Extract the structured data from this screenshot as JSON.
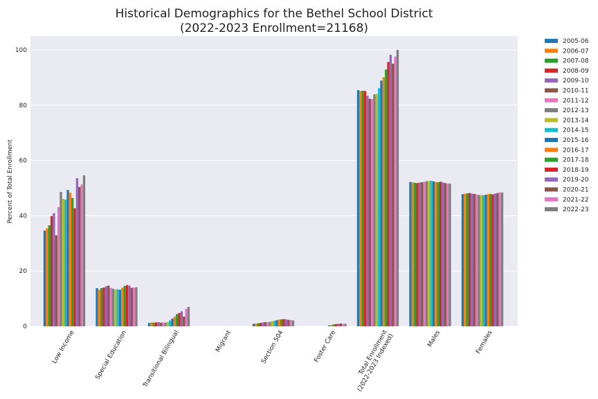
{
  "chart_data": {
    "type": "bar",
    "title": "Historical Demographics for the Bethel School District",
    "subtitle": "(2022-2023 Enrollment=21168)",
    "xlabel": "",
    "ylabel": "Percent of Total Enrollment",
    "ylim": [
      0,
      105
    ],
    "yticks": [
      0,
      20,
      40,
      60,
      80,
      100
    ],
    "grid": true,
    "legend_position": "outside-right",
    "categories": [
      "Low Income",
      "Special Education",
      "Transitional Bilingual",
      "Migrant",
      "Section 504",
      "Foster Care",
      "Total Enrollment\n(2022-2023 Indexed)",
      "Males",
      "Females"
    ],
    "series": [
      {
        "name": "2005-06",
        "color": "#1f77b4",
        "values": [
          34.6,
          13.8,
          1.2,
          0.0,
          0.9,
          0.0,
          85.4,
          52.2,
          47.8
        ]
      },
      {
        "name": "2006-07",
        "color": "#ff7f0e",
        "values": [
          35.4,
          13.2,
          1.4,
          0.0,
          1.0,
          0.0,
          85.1,
          52.0,
          48.0
        ]
      },
      {
        "name": "2007-08",
        "color": "#2ca02c",
        "values": [
          36.5,
          13.8,
          1.3,
          0.0,
          1.1,
          0.0,
          85.2,
          51.9,
          48.1
        ]
      },
      {
        "name": "2008-09",
        "color": "#d62728",
        "values": [
          39.9,
          14.0,
          1.4,
          0.0,
          1.2,
          0.0,
          85.1,
          51.8,
          48.2
        ]
      },
      {
        "name": "2009-10",
        "color": "#9467bd",
        "values": [
          40.9,
          14.5,
          1.5,
          0.0,
          1.4,
          0.0,
          83.4,
          52.0,
          48.0
        ]
      },
      {
        "name": "2010-11",
        "color": "#8c564b",
        "values": [
          32.9,
          14.7,
          1.3,
          0.0,
          1.5,
          0.0,
          82.3,
          52.1,
          47.9
        ]
      },
      {
        "name": "2011-12",
        "color": "#e377c2",
        "values": [
          43.1,
          13.9,
          1.4,
          0.0,
          1.5,
          0.0,
          82.2,
          52.3,
          47.7
        ]
      },
      {
        "name": "2012-13",
        "color": "#7f7f7f",
        "values": [
          48.6,
          13.6,
          1.3,
          0.0,
          1.6,
          0.0,
          83.9,
          52.5,
          47.5
        ]
      },
      {
        "name": "2013-14",
        "color": "#bcbd22",
        "values": [
          46.1,
          13.3,
          1.5,
          0.0,
          1.8,
          0.0,
          84.1,
          52.5,
          47.5
        ]
      },
      {
        "name": "2014-15",
        "color": "#17becf",
        "values": [
          45.8,
          13.4,
          2.1,
          0.0,
          2.0,
          0.0,
          86.1,
          52.6,
          47.4
        ]
      },
      {
        "name": "2015-16",
        "color": "#1f77b4",
        "values": [
          49.3,
          13.2,
          2.8,
          0.0,
          2.2,
          0.3,
          88.9,
          52.4,
          47.6
        ]
      },
      {
        "name": "2016-17",
        "color": "#ff7f0e",
        "values": [
          48.3,
          14.0,
          3.5,
          0.0,
          2.4,
          0.5,
          90.1,
          52.2,
          47.8
        ]
      },
      {
        "name": "2017-18",
        "color": "#2ca02c",
        "values": [
          46.4,
          14.6,
          4.4,
          0.0,
          2.5,
          0.7,
          92.9,
          52.1,
          47.9
        ]
      },
      {
        "name": "2018-19",
        "color": "#d62728",
        "values": [
          42.7,
          14.9,
          4.8,
          0.0,
          2.6,
          0.8,
          95.6,
          52.3,
          47.7
        ]
      },
      {
        "name": "2019-20",
        "color": "#9467bd",
        "values": [
          53.6,
          14.7,
          5.4,
          0.0,
          2.5,
          0.9,
          98.2,
          52.0,
          48.0
        ]
      },
      {
        "name": "2020-21",
        "color": "#8c564b",
        "values": [
          50.4,
          13.9,
          3.5,
          0.0,
          2.3,
          1.0,
          95.0,
          51.8,
          48.2
        ]
      },
      {
        "name": "2021-22",
        "color": "#e377c2",
        "values": [
          51.3,
          14.0,
          6.3,
          0.0,
          2.2,
          0.9,
          97.6,
          51.6,
          48.4
        ]
      },
      {
        "name": "2022-23",
        "color": "#7f7f7f",
        "values": [
          54.6,
          14.1,
          7.0,
          0.0,
          2.1,
          0.9,
          100.0,
          51.6,
          48.4
        ]
      }
    ]
  }
}
